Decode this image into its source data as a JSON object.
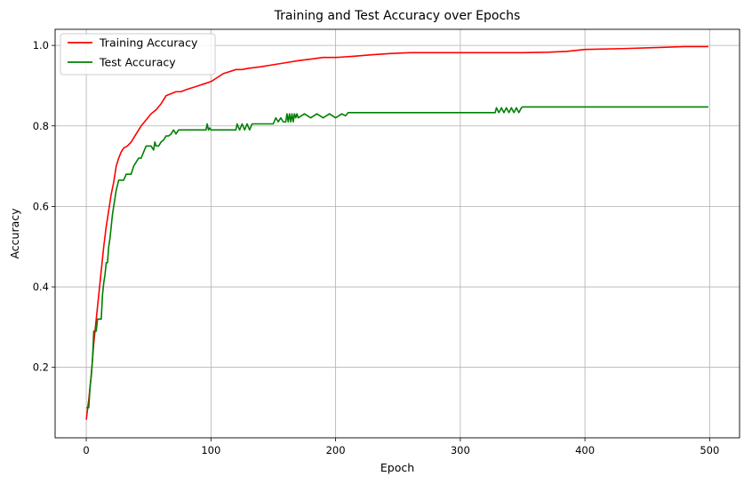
{
  "chart_data": {
    "type": "line",
    "title": "Training and Test Accuracy over Epochs",
    "xlabel": "Epoch",
    "ylabel": "Accuracy",
    "xlim": [
      -25,
      524
    ],
    "ylim": [
      0.025,
      1.04
    ],
    "xticks": [
      0,
      100,
      200,
      300,
      400,
      500
    ],
    "yticks": [
      0.2,
      0.4,
      0.6,
      0.8,
      1.0
    ],
    "ytick_labels": [
      "0.2",
      "0.4",
      "0.6",
      "0.8",
      "1.0"
    ],
    "grid": true,
    "legend_position": "top-left",
    "series": [
      {
        "name": "Training Accuracy",
        "color": "#ff0000",
        "x": [
          0,
          2,
          4,
          6,
          8,
          10,
          12,
          14,
          16,
          18,
          20,
          22,
          24,
          26,
          28,
          30,
          33,
          36,
          40,
          44,
          48,
          52,
          56,
          60,
          64,
          68,
          72,
          76,
          80,
          85,
          90,
          95,
          100,
          105,
          110,
          115,
          120,
          125,
          130,
          140,
          150,
          160,
          170,
          180,
          190,
          200,
          215,
          230,
          245,
          260,
          280,
          300,
          330,
          350,
          370,
          385,
          400,
          430,
          460,
          480,
          499
        ],
        "y": [
          0.07,
          0.12,
          0.18,
          0.26,
          0.32,
          0.38,
          0.44,
          0.5,
          0.55,
          0.59,
          0.63,
          0.66,
          0.7,
          0.72,
          0.735,
          0.745,
          0.75,
          0.76,
          0.78,
          0.8,
          0.815,
          0.83,
          0.84,
          0.855,
          0.875,
          0.88,
          0.885,
          0.885,
          0.89,
          0.895,
          0.9,
          0.905,
          0.91,
          0.92,
          0.93,
          0.935,
          0.94,
          0.94,
          0.943,
          0.947,
          0.952,
          0.957,
          0.962,
          0.966,
          0.97,
          0.97,
          0.973,
          0.977,
          0.98,
          0.982,
          0.982,
          0.982,
          0.982,
          0.982,
          0.983,
          0.985,
          0.99,
          0.992,
          0.995,
          0.997,
          0.997
        ]
      },
      {
        "name": "Test Accuracy",
        "color": "#008000",
        "x": [
          0,
          1,
          2,
          3,
          4,
          5,
          6,
          7,
          8,
          9,
          10,
          11,
          12,
          13,
          14,
          15,
          16,
          17,
          18,
          19,
          20,
          21,
          22,
          23,
          24,
          26,
          28,
          30,
          32,
          34,
          36,
          38,
          40,
          42,
          44,
          46,
          48,
          50,
          52,
          54,
          55,
          56,
          58,
          60,
          62,
          64,
          66,
          68,
          70,
          72,
          74,
          76,
          78,
          80,
          90,
          96,
          97,
          98,
          99,
          100,
          110,
          120,
          121,
          123,
          125,
          127,
          129,
          131,
          133,
          140,
          150,
          152,
          154,
          156,
          158,
          160,
          161,
          162,
          163,
          164,
          165,
          166,
          167,
          168,
          169,
          170,
          175,
          180,
          185,
          190,
          195,
          200,
          205,
          208,
          210,
          250,
          300,
          328,
          329,
          331,
          333,
          335,
          337,
          339,
          341,
          343,
          345,
          347,
          349,
          350,
          400,
          450,
          499
        ],
        "y": [
          0.1,
          0.1,
          0.1,
          0.15,
          0.18,
          0.22,
          0.29,
          0.29,
          0.29,
          0.32,
          0.32,
          0.32,
          0.32,
          0.38,
          0.41,
          0.43,
          0.46,
          0.46,
          0.5,
          0.52,
          0.55,
          0.58,
          0.6,
          0.62,
          0.64,
          0.665,
          0.665,
          0.665,
          0.68,
          0.68,
          0.68,
          0.7,
          0.71,
          0.72,
          0.72,
          0.735,
          0.75,
          0.75,
          0.75,
          0.74,
          0.76,
          0.75,
          0.75,
          0.76,
          0.765,
          0.775,
          0.775,
          0.78,
          0.79,
          0.78,
          0.79,
          0.79,
          0.79,
          0.79,
          0.79,
          0.79,
          0.805,
          0.79,
          0.795,
          0.79,
          0.79,
          0.79,
          0.805,
          0.79,
          0.805,
          0.79,
          0.805,
          0.79,
          0.805,
          0.805,
          0.805,
          0.82,
          0.81,
          0.82,
          0.81,
          0.81,
          0.83,
          0.81,
          0.83,
          0.81,
          0.83,
          0.81,
          0.83,
          0.82,
          0.83,
          0.82,
          0.83,
          0.82,
          0.83,
          0.82,
          0.83,
          0.82,
          0.83,
          0.825,
          0.833,
          0.833,
          0.833,
          0.833,
          0.845,
          0.833,
          0.845,
          0.833,
          0.845,
          0.833,
          0.845,
          0.833,
          0.845,
          0.833,
          0.845,
          0.847,
          0.847,
          0.847,
          0.847
        ]
      }
    ]
  }
}
